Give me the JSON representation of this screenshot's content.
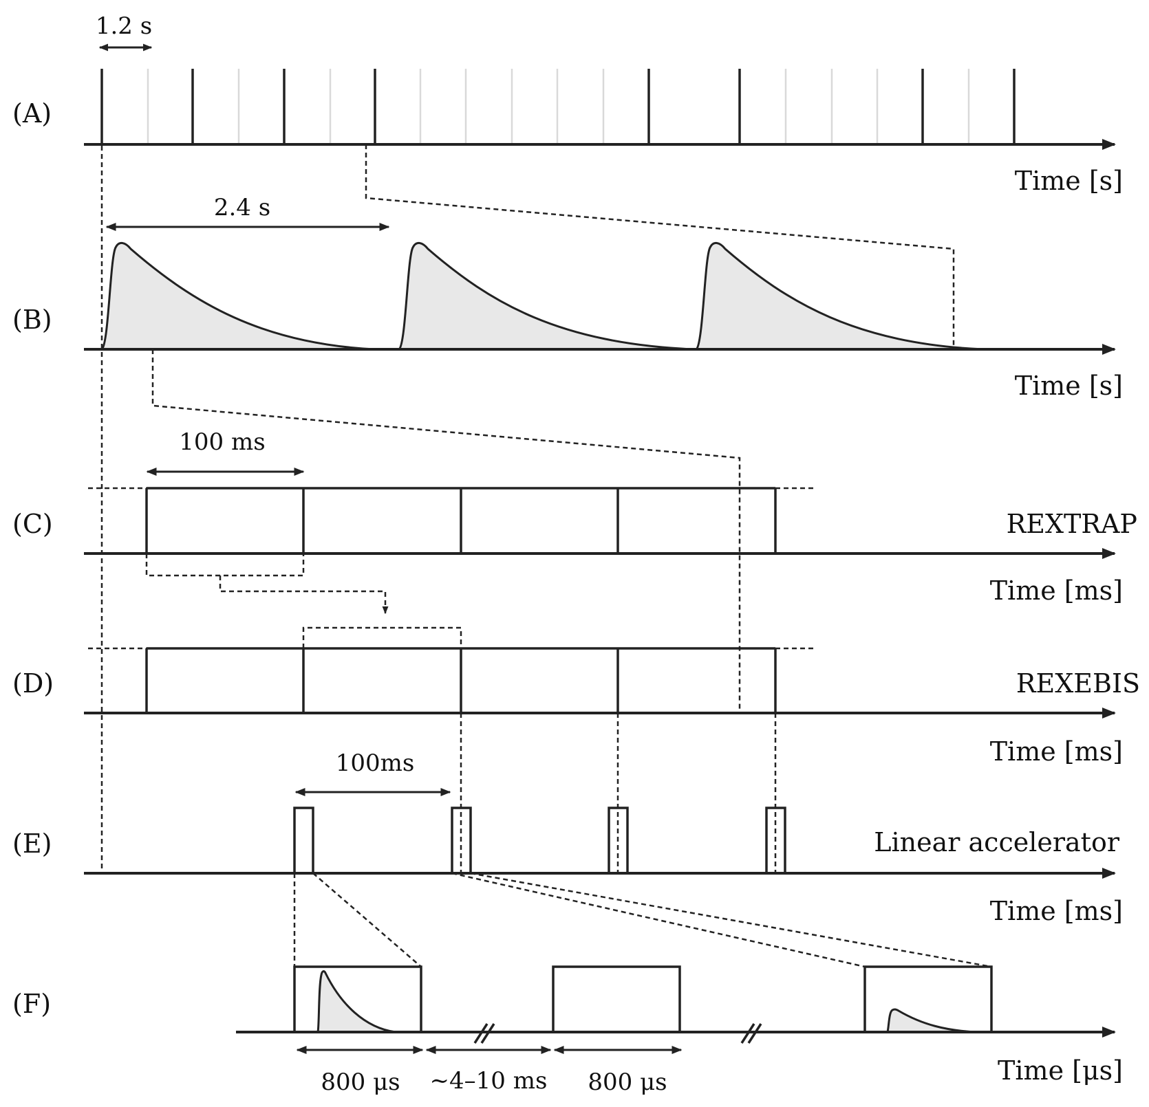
{
  "rows": {
    "a": "(A)",
    "b": "(B)",
    "c": "(C)",
    "d": "(D)",
    "e": "(E)",
    "f": "(F)"
  },
  "axes": {
    "a": "Time [s]",
    "b": "Time [s]",
    "c": "Time [ms]",
    "d": "Time [ms]",
    "e": "Time [ms]",
    "f": "Time [μs]"
  },
  "systems": {
    "c": "REXTRAP",
    "d": "REXEBIS",
    "e": "Linear accelerator"
  },
  "intervals": {
    "proton_pulse_spacing": "1.2 s",
    "supercycle_period": "2.4 s",
    "trap_cycle": "100 ms",
    "linac_cycle": "100ms",
    "rf_pulse_1": "800 μs",
    "rf_gap": "∼4–10 ms",
    "rf_pulse_2": "800 μs"
  }
}
